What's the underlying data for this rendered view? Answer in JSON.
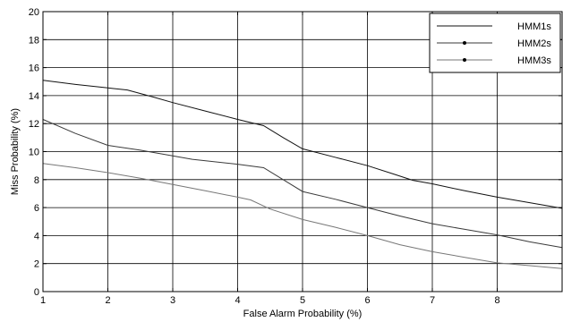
{
  "chart_data": {
    "type": "line",
    "xlabel": "False Alarm Probability (%)",
    "ylabel": "Miss Probability (%)",
    "xlim": [
      1,
      9
    ],
    "ylim": [
      0,
      20
    ],
    "xticks": [
      1,
      2,
      3,
      4,
      5,
      6,
      7,
      8
    ],
    "yticks": [
      0,
      2,
      4,
      6,
      8,
      10,
      12,
      14,
      16,
      18,
      20
    ],
    "grid": true,
    "legend_position": "top-right",
    "colors": {
      "HMM1s": "#111111",
      "HMM2s": "#3a3a3a",
      "HMM3s": "#777777"
    },
    "series": [
      {
        "name": "HMM1s",
        "points": [
          [
            1.0,
            15.1
          ],
          [
            1.5,
            14.8
          ],
          [
            2.0,
            14.55
          ],
          [
            2.3,
            14.4
          ],
          [
            2.7,
            13.9
          ],
          [
            3.0,
            13.5
          ],
          [
            3.5,
            12.9
          ],
          [
            4.0,
            12.3
          ],
          [
            4.4,
            11.85
          ],
          [
            4.7,
            11.0
          ],
          [
            5.0,
            10.2
          ],
          [
            5.5,
            9.6
          ],
          [
            6.0,
            9.0
          ],
          [
            6.4,
            8.4
          ],
          [
            6.7,
            7.95
          ],
          [
            7.0,
            7.7
          ],
          [
            7.5,
            7.2
          ],
          [
            8.0,
            6.75
          ],
          [
            8.5,
            6.35
          ],
          [
            9.0,
            5.95
          ]
        ]
      },
      {
        "name": "HMM2s",
        "points": [
          [
            1.0,
            12.3
          ],
          [
            1.5,
            11.3
          ],
          [
            2.0,
            10.45
          ],
          [
            2.5,
            10.1
          ],
          [
            3.0,
            9.7
          ],
          [
            3.3,
            9.45
          ],
          [
            4.0,
            9.1
          ],
          [
            4.4,
            8.85
          ],
          [
            4.7,
            8.0
          ],
          [
            5.0,
            7.15
          ],
          [
            5.5,
            6.6
          ],
          [
            6.0,
            6.0
          ],
          [
            6.5,
            5.4
          ],
          [
            7.0,
            4.85
          ],
          [
            7.5,
            4.45
          ],
          [
            8.0,
            4.05
          ],
          [
            8.5,
            3.55
          ],
          [
            9.0,
            3.15
          ]
        ]
      },
      {
        "name": "HMM3s",
        "points": [
          [
            1.0,
            9.15
          ],
          [
            1.5,
            8.85
          ],
          [
            2.0,
            8.5
          ],
          [
            2.5,
            8.1
          ],
          [
            3.0,
            7.65
          ],
          [
            3.5,
            7.2
          ],
          [
            4.0,
            6.75
          ],
          [
            4.2,
            6.55
          ],
          [
            4.5,
            5.9
          ],
          [
            5.0,
            5.15
          ],
          [
            5.5,
            4.6
          ],
          [
            6.0,
            4.0
          ],
          [
            6.5,
            3.35
          ],
          [
            7.0,
            2.85
          ],
          [
            7.5,
            2.45
          ],
          [
            8.0,
            2.05
          ],
          [
            8.5,
            1.85
          ],
          [
            9.0,
            1.65
          ]
        ]
      }
    ]
  }
}
